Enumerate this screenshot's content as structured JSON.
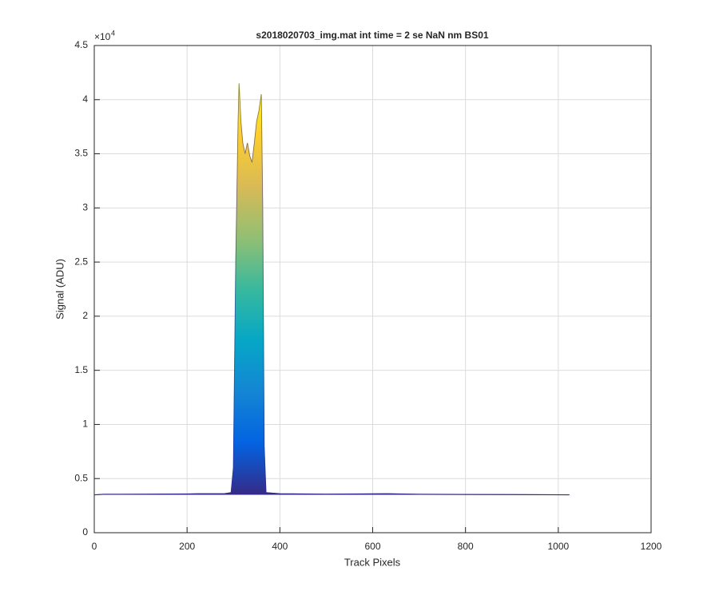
{
  "chart_data": {
    "type": "area",
    "title": "s2018020703_img.mat int time = 2 se  NaN nm BS01",
    "x_label": "Track Pixels",
    "y_label": "Signal (ADU)",
    "y_multiplier_label": "×10",
    "y_multiplier_exponent": "4",
    "x": [
      1,
      20,
      60,
      120,
      200,
      225,
      280,
      295,
      300,
      305,
      310,
      312,
      316,
      320,
      325,
      330,
      335,
      340,
      345,
      350,
      355,
      360,
      363,
      366,
      370,
      400,
      500,
      632,
      700,
      800,
      900,
      1024
    ],
    "values": [
      3500,
      3550,
      3550,
      3560,
      3580,
      3600,
      3600,
      3700,
      6000,
      25000,
      38000,
      41500,
      38000,
      36000,
      35000,
      36000,
      34800,
      34200,
      36000,
      38000,
      39000,
      40500,
      30000,
      8000,
      3700,
      3600,
      3560,
      3600,
      3550,
      3530,
      3520,
      3500
    ],
    "colormap": [
      "#352a87",
      "#0363e1",
      "#1485d4",
      "#06a7c6",
      "#38b99e",
      "#92bf73",
      "#d9ba56",
      "#fcce2e",
      "#f9fb0e"
    ],
    "xlim": [
      0,
      1200
    ],
    "xticks": [
      0,
      200,
      400,
      600,
      800,
      1000,
      1200
    ],
    "ylim": [
      0,
      45000
    ],
    "yticks": [
      {
        "value": 0,
        "label": "0"
      },
      {
        "value": 5000,
        "label": "0.5"
      },
      {
        "value": 10000,
        "label": "1"
      },
      {
        "value": 15000,
        "label": "1.5"
      },
      {
        "value": 20000,
        "label": "2"
      },
      {
        "value": 25000,
        "label": "2.5"
      },
      {
        "value": 30000,
        "label": "3"
      },
      {
        "value": 35000,
        "label": "3.5"
      },
      {
        "value": 40000,
        "label": "4"
      },
      {
        "value": 45000,
        "label": "4.5"
      }
    ],
    "grid": true
  }
}
